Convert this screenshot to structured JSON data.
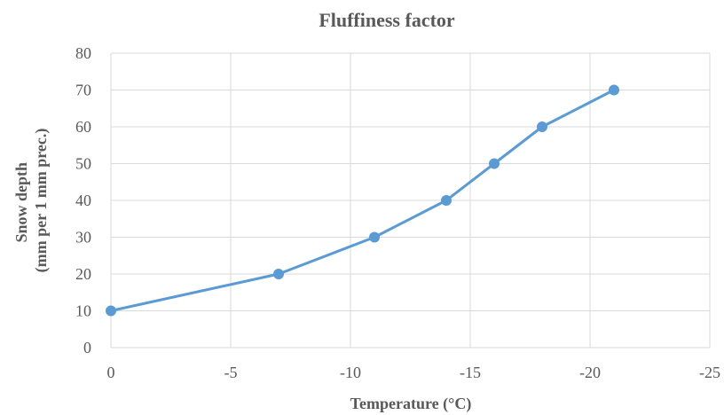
{
  "chart_data": {
    "type": "line",
    "title": "Fluffiness factor",
    "xlabel": "Temperature (°C)",
    "ylabel_lines": [
      "Snow depth",
      "(mm per 1 mm prec.)"
    ],
    "x_ticks": [
      "0",
      "-5",
      "-10",
      "-15",
      "-20",
      "-25"
    ],
    "y_ticks": [
      "0",
      "10",
      "20",
      "30",
      "40",
      "50",
      "60",
      "70",
      "80"
    ],
    "xlim": [
      0,
      -25
    ],
    "ylim": [
      0,
      80
    ],
    "grid": true,
    "legend": "none",
    "series": [
      {
        "color": "#5b9bd5",
        "x": [
          0,
          -7,
          -11,
          -14,
          -16,
          -18,
          -21
        ],
        "y": [
          10,
          20,
          30,
          40,
          50,
          60,
          70
        ]
      }
    ]
  }
}
